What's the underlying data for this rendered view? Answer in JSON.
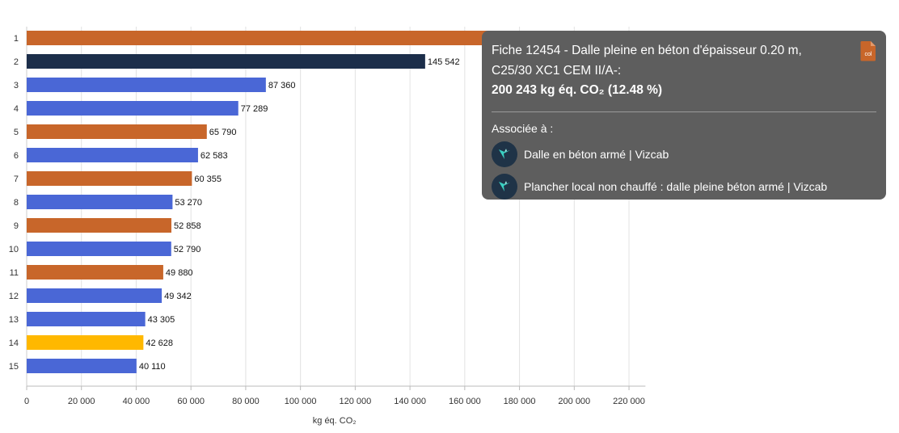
{
  "chart_data": {
    "type": "bar",
    "orientation": "horizontal",
    "categories": [
      "1",
      "2",
      "3",
      "4",
      "5",
      "6",
      "7",
      "8",
      "9",
      "10",
      "11",
      "12",
      "13",
      "14",
      "15"
    ],
    "values": [
      200243,
      145542,
      87360,
      77289,
      65790,
      62583,
      60355,
      53270,
      52858,
      52790,
      49880,
      49342,
      43305,
      42628,
      40110
    ],
    "value_labels": [
      "200 243",
      "145 542",
      "87 360",
      "77 289",
      "65 790",
      "62 583",
      "60 355",
      "53 270",
      "52 858",
      "52 790",
      "49 880",
      "49 342",
      "43 305",
      "42 628",
      "40 110"
    ],
    "bar_colors": [
      "#c8662a",
      "#1c2e4a",
      "#4a67d6",
      "#4a67d6",
      "#c8662a",
      "#4a67d6",
      "#c8662a",
      "#4a67d6",
      "#c8662a",
      "#4a67d6",
      "#c8662a",
      "#4a67d6",
      "#4a67d6",
      "#ffb800",
      "#4a67d6"
    ],
    "xlabel": "kg éq. CO₂",
    "ylabel": "",
    "xlim": [
      0,
      226000
    ],
    "xticks": [
      0,
      20000,
      40000,
      60000,
      80000,
      100000,
      120000,
      140000,
      160000,
      180000,
      200000,
      220000
    ],
    "xtick_labels": [
      "0",
      "20 000",
      "40 000",
      "60 000",
      "80 000",
      "100 000",
      "120 000",
      "140 000",
      "160 000",
      "180 000",
      "200 000",
      "220 000"
    ],
    "grid": true,
    "legend": "none"
  },
  "tooltip": {
    "title": "Fiche 12454 - Dalle pleine en béton d'épaisseur 0.20 m, C25/30 XC1 CEM II/A-:",
    "value": "200 243 kg éq. CO₂ (12.48 %)",
    "associated_label": "Associée à :",
    "items": [
      {
        "label": "Dalle en béton armé | Vizcab",
        "icon": "vizcab-logo-icon"
      },
      {
        "label": "Plancher local non chauffé : dalle pleine béton armé | Vizcab",
        "icon": "vizcab-logo-icon"
      }
    ],
    "file_icon_text": "col",
    "file_icon_color": "#c8662a"
  }
}
